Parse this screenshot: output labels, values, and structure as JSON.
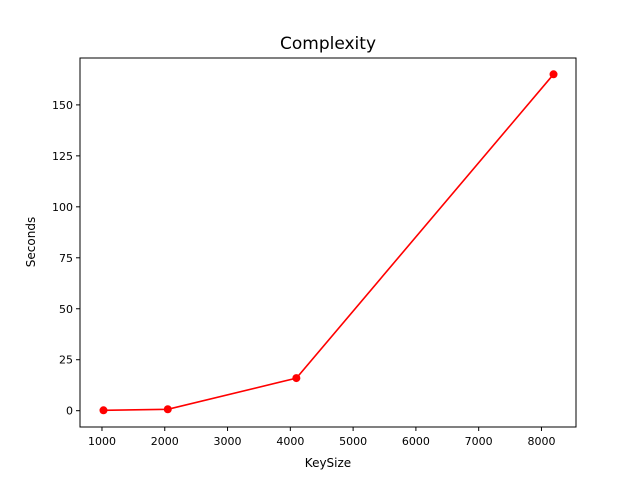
{
  "chart_data": {
    "type": "line",
    "title": "Complexity",
    "xlabel": "KeySize",
    "ylabel": "Seconds",
    "x": [
      1024,
      2048,
      4096,
      8192
    ],
    "series": [
      {
        "values": [
          0.2,
          0.7,
          16.0,
          165.0
        ],
        "color": "#ff0000",
        "marker": "circle"
      }
    ],
    "xlim": [
      650,
      8550
    ],
    "ylim": [
      -8,
      173
    ],
    "xticks": [
      1000,
      2000,
      3000,
      4000,
      5000,
      6000,
      7000,
      8000
    ],
    "yticks": [
      0,
      25,
      50,
      75,
      100,
      125,
      150
    ],
    "grid": false,
    "legend": "none"
  }
}
